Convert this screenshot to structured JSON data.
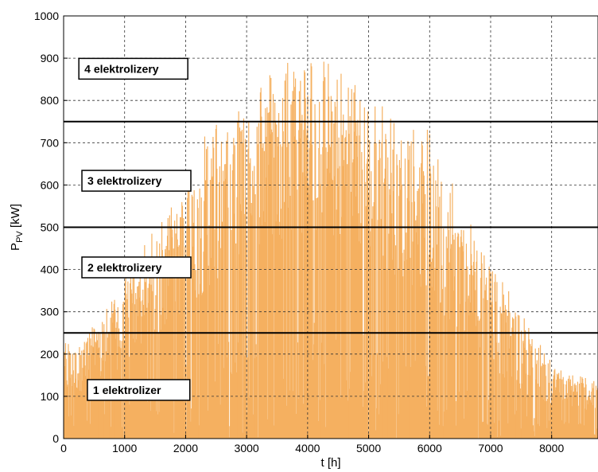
{
  "chart_data": {
    "type": "bar",
    "xlabel": "t [h]",
    "ylabel_main": "P",
    "ylabel_sub": "PV",
    "ylabel_unit": " [kW]",
    "xlim": [
      0,
      8760
    ],
    "ylim": [
      0,
      1000
    ],
    "xticks": [
      0,
      1000,
      2000,
      3000,
      4000,
      5000,
      6000,
      7000,
      8000
    ],
    "yticks": [
      0,
      100,
      200,
      300,
      400,
      500,
      600,
      700,
      800,
      900,
      1000
    ],
    "grid": true,
    "bar_color": "#f5b060",
    "thresholds": [
      250,
      500,
      750
    ],
    "annotations": [
      {
        "text": "4 elektrolizery",
        "x": 250,
        "y": 875
      },
      {
        "text": "3 elektrolizery",
        "x": 300,
        "y": 610
      },
      {
        "text": "2 elektrolizery",
        "x": 300,
        "y": 405
      },
      {
        "text": "1 elektrolizer",
        "x": 390,
        "y": 115
      }
    ],
    "envelope": {
      "x": [
        0,
        500,
        1000,
        1500,
        2000,
        2500,
        3000,
        3500,
        3800,
        4000,
        4500,
        5000,
        5500,
        6000,
        6500,
        7000,
        7500,
        8000,
        8500,
        8760
      ],
      "peak_kw": [
        230,
        270,
        380,
        500,
        650,
        760,
        840,
        890,
        930,
        920,
        880,
        830,
        750,
        730,
        580,
        420,
        300,
        180,
        150,
        140
      ],
      "typical_kw": [
        100,
        120,
        170,
        230,
        300,
        370,
        430,
        470,
        480,
        480,
        460,
        430,
        380,
        330,
        250,
        170,
        110,
        80,
        70,
        60
      ]
    }
  }
}
